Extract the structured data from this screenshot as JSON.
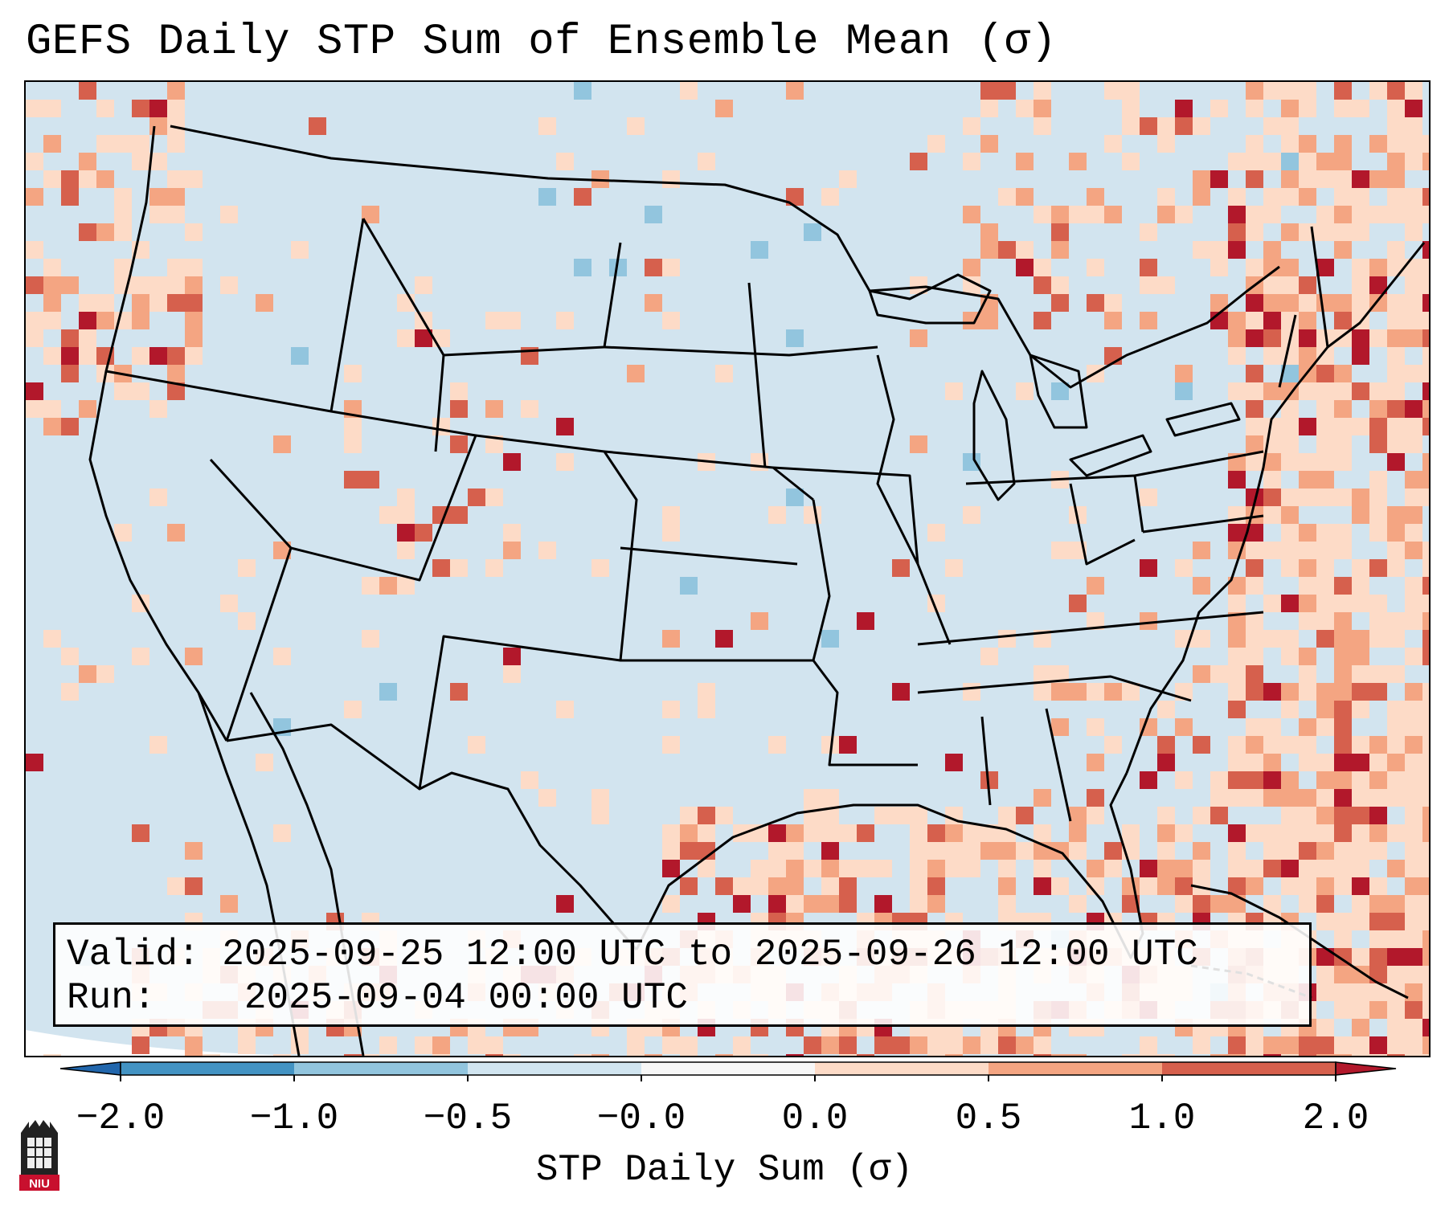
{
  "title": "GEFS Daily STP Sum of Ensemble Mean (σ)",
  "info": {
    "valid_label": "Valid:",
    "valid_text": "2025-09-25 12:00 UTC to 2025-09-26 12:00 UTC",
    "run_label": "Run:",
    "run_text": "2025-09-04 00:00 UTC"
  },
  "colorbar": {
    "label": "STP Daily Sum (σ)",
    "ticks": [
      "−2.0",
      "−1.0",
      "−0.5",
      "−0.0",
      "0.0",
      "0.5",
      "1.0",
      "2.0"
    ],
    "colors": [
      "#4393c3",
      "#92c5de",
      "#d1e5f0",
      "#f7f7f7",
      "#fddbc7",
      "#f4a582",
      "#d6604d",
      "#b2182b"
    ],
    "under_color": "#2166ac",
    "over_color": "#b2182b"
  },
  "logo": {
    "text": "NIU",
    "name": "niu-logo"
  },
  "colors": {
    "background_field": "#d1e5f0",
    "ocean": "#d2e4ef"
  }
}
